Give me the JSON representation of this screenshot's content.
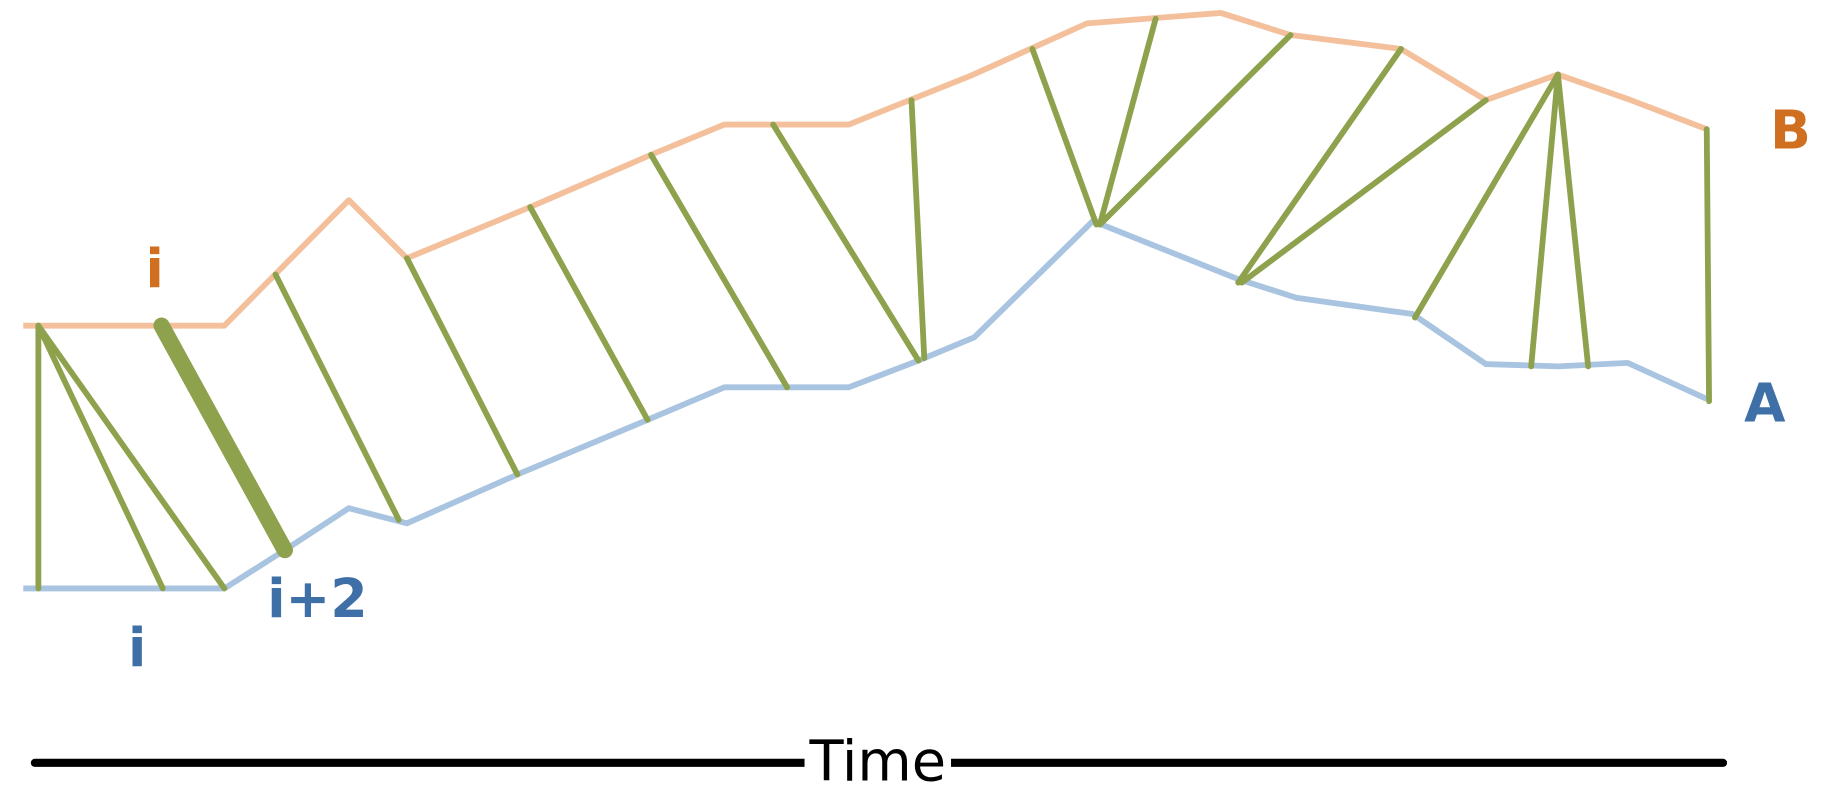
{
  "labels": {
    "b_index": "i",
    "a_index": "i",
    "a_index_next": "i+2",
    "series_a": "A",
    "series_b": "B",
    "axis": "Time"
  }
}
